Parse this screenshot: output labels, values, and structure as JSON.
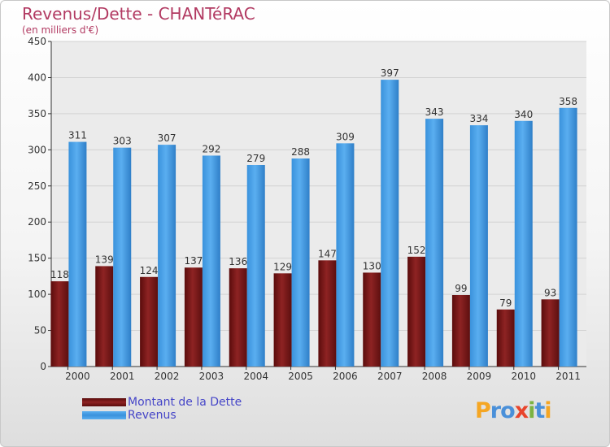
{
  "header": {
    "title": "Revenus/Dette - CHANTéRAC",
    "subtitle": "(en milliers d'€)"
  },
  "chart_data": {
    "type": "bar",
    "categories": [
      "2000",
      "2001",
      "2002",
      "2003",
      "2004",
      "2005",
      "2006",
      "2007",
      "2008",
      "2009",
      "2010",
      "2011"
    ],
    "series": [
      {
        "name": "Montant de la Dette",
        "color": "#7b1a1a",
        "values": [
          118,
          139,
          124,
          137,
          136,
          129,
          147,
          130,
          152,
          99,
          79,
          93
        ]
      },
      {
        "name": "Revenus",
        "color": "#4da3e8",
        "values": [
          311,
          303,
          307,
          292,
          279,
          288,
          309,
          397,
          343,
          334,
          340,
          358
        ]
      }
    ],
    "ylim": [
      0,
      450
    ],
    "yticks": [
      0,
      50,
      100,
      150,
      200,
      250,
      300,
      350,
      400,
      450
    ],
    "grid": true,
    "legend_position": "bottom-left"
  },
  "legend": {
    "items": [
      {
        "label": "Montant de la Dette",
        "color": "#7b1a1a"
      },
      {
        "label": "Revenus",
        "color": "#4da3e8"
      }
    ]
  },
  "logo": {
    "text": "Proxiti",
    "letters": [
      {
        "ch": "P",
        "color": "#f5a623"
      },
      {
        "ch": "r",
        "color": "#4a90d9"
      },
      {
        "ch": "o",
        "color": "#4a90d9"
      },
      {
        "ch": "x",
        "color": "#e8452c"
      },
      {
        "ch": "i",
        "color": "#7cb342"
      },
      {
        "ch": "t",
        "color": "#4a90d9"
      },
      {
        "ch": "i",
        "color": "#f5a623"
      }
    ]
  }
}
